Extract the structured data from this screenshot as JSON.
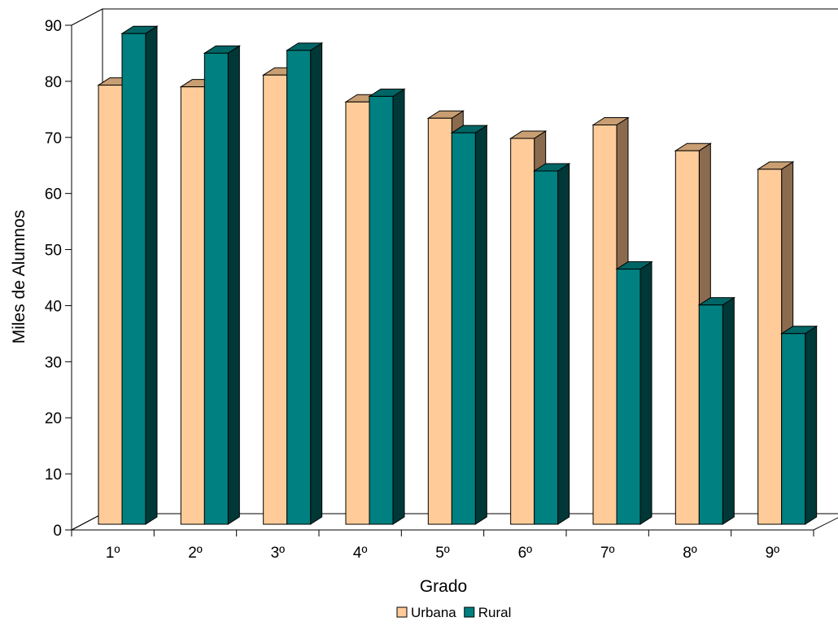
{
  "chart_data": {
    "type": "bar",
    "title": "",
    "xlabel": "Grado",
    "ylabel": "Miles de Alumnos",
    "categories": [
      "1º",
      "2º",
      "3º",
      "4º",
      "5º",
      "6º",
      "7º",
      "8º",
      "9º"
    ],
    "series": [
      {
        "name": "Urbana",
        "values": [
          78.3,
          78,
          80.1,
          75.3,
          72.4,
          68.8,
          71.2,
          66.6,
          63.3
        ],
        "color": "#FFCC99",
        "side_color": "#8B6B4E"
      },
      {
        "name": "Rural",
        "values": [
          87.5,
          84,
          84.5,
          76.3,
          69.8,
          63,
          45.5,
          39.1,
          34
        ],
        "color": "#008080",
        "side_color": "#003838"
      }
    ],
    "ylim": [
      0,
      90
    ],
    "yticks": [
      0,
      10,
      20,
      30,
      40,
      50,
      60,
      70,
      80,
      90
    ],
    "grid": false,
    "style": "3d-clustered-column",
    "legend_position": "bottom"
  }
}
